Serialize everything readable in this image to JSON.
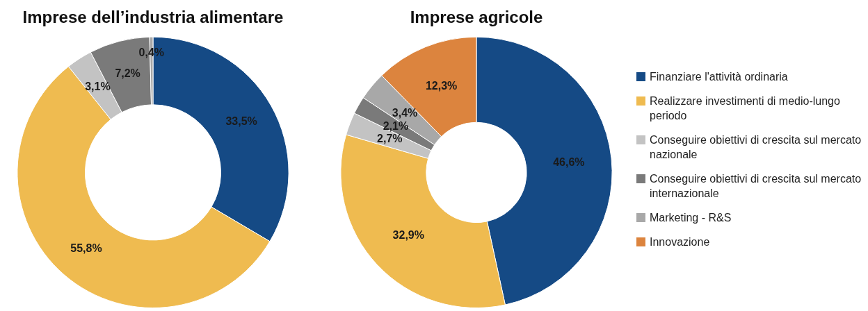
{
  "chart_data": [
    {
      "type": "donut",
      "title": "Imprese dell’industria alimentare",
      "categories": [
        null,
        null,
        null,
        null,
        null
      ],
      "values": [
        33.5,
        55.8,
        3.1,
        7.2,
        0.4
      ],
      "value_labels": [
        "33,5%",
        "55,8%",
        "3,1%",
        "7,2%",
        "0,4%"
      ],
      "colors": [
        "#154a85",
        "#efbb50",
        "#c3c3c3",
        "#7a7a7a",
        "#a8a8a8"
      ]
    },
    {
      "type": "donut",
      "title": "Imprese agricole",
      "categories": [
        "Finanziare l'attività ordinaria",
        "Realizzare investimenti  di medio-lungo periodo",
        "Conseguire obiettivi di crescita sul mercato nazionale",
        "Conseguire obiettivi di crescita sul mercato internazionale",
        "Marketing - R&S",
        "Innovazione"
      ],
      "values": [
        46.6,
        32.9,
        2.7,
        2.1,
        3.4,
        12.3
      ],
      "value_labels": [
        "46,6%",
        "32,9%",
        "2,7%",
        "2,1%",
        "3,4%",
        "12,3%"
      ],
      "colors": [
        "#154a85",
        "#efbb50",
        "#c3c3c3",
        "#7a7a7a",
        "#a8a8a8",
        "#dc843e"
      ],
      "legend": "right"
    }
  ]
}
